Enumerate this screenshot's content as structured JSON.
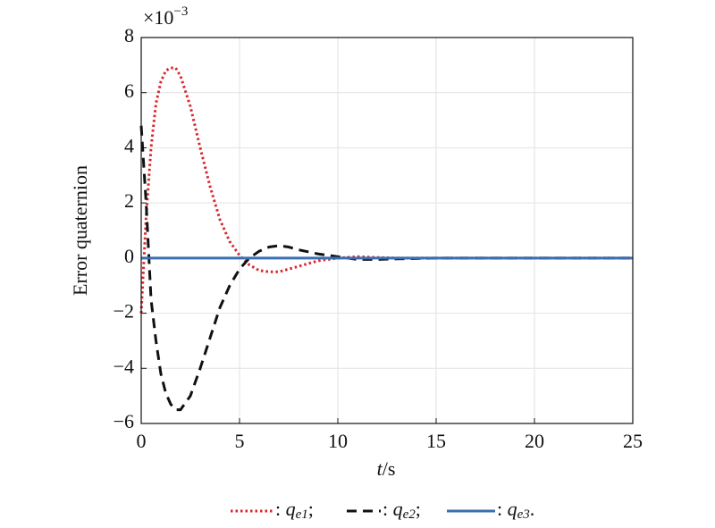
{
  "chart_data": {
    "type": "line",
    "y_label": "Error quaternion",
    "y_scale_label": {
      "base": "×10",
      "exponent": "−3"
    },
    "x_label": {
      "var": "t",
      "unit": "/s"
    },
    "x": [
      0,
      0.25,
      0.5,
      0.75,
      1,
      1.25,
      1.5,
      1.75,
      2,
      2.5,
      3,
      3.5,
      4,
      4.5,
      5,
      5.5,
      6,
      6.5,
      7,
      7.5,
      8,
      9,
      10,
      11,
      12,
      13,
      15,
      20,
      25
    ],
    "series": [
      {
        "name": {
          "prefix": ": ",
          "var": "q",
          "sub": "e1",
          "suffix": ";"
        },
        "color": "#d9262e",
        "dash": "dotted",
        "values": [
          -2,
          1.5,
          4.0,
          5.6,
          6.4,
          6.8,
          6.9,
          6.9,
          6.6,
          5.5,
          4.0,
          2.6,
          1.4,
          0.6,
          0.1,
          -0.25,
          -0.45,
          -0.5,
          -0.5,
          -0.4,
          -0.3,
          -0.1,
          0,
          0.05,
          0.02,
          0,
          0,
          0,
          0
        ]
      },
      {
        "name": {
          "prefix": ": ",
          "var": "q",
          "sub": "e2",
          "suffix": ";"
        },
        "color": "#111111",
        "dash": "dashed",
        "values": [
          4.8,
          2.0,
          -1.5,
          -3.0,
          -4.2,
          -4.9,
          -5.3,
          -5.5,
          -5.5,
          -5.0,
          -4.0,
          -2.9,
          -1.8,
          -1.0,
          -0.4,
          0,
          0.25,
          0.4,
          0.45,
          0.4,
          0.3,
          0.15,
          0.05,
          -0.05,
          -0.05,
          -0.03,
          0,
          0,
          0
        ]
      },
      {
        "name": {
          "prefix": ": ",
          "var": "q",
          "sub": "e3",
          "suffix": "."
        },
        "color": "#3b6eb0",
        "dash": "solid",
        "values": [
          0,
          0,
          0,
          0,
          0,
          0,
          0,
          0,
          0,
          0,
          0,
          0,
          0,
          0,
          0,
          0,
          0,
          0,
          0,
          0,
          0,
          0,
          0,
          0,
          0,
          0,
          0,
          0,
          0
        ]
      }
    ],
    "xlim": [
      0,
      25
    ],
    "xticks": [
      0,
      5,
      10,
      15,
      20,
      25
    ],
    "ylim": [
      -6,
      8
    ],
    "yticks": [
      {
        "value": -6,
        "label": "−6"
      },
      {
        "value": -4,
        "label": "−4"
      },
      {
        "value": -2,
        "label": "−2"
      },
      0,
      2,
      4,
      6,
      8
    ],
    "grid": true
  }
}
